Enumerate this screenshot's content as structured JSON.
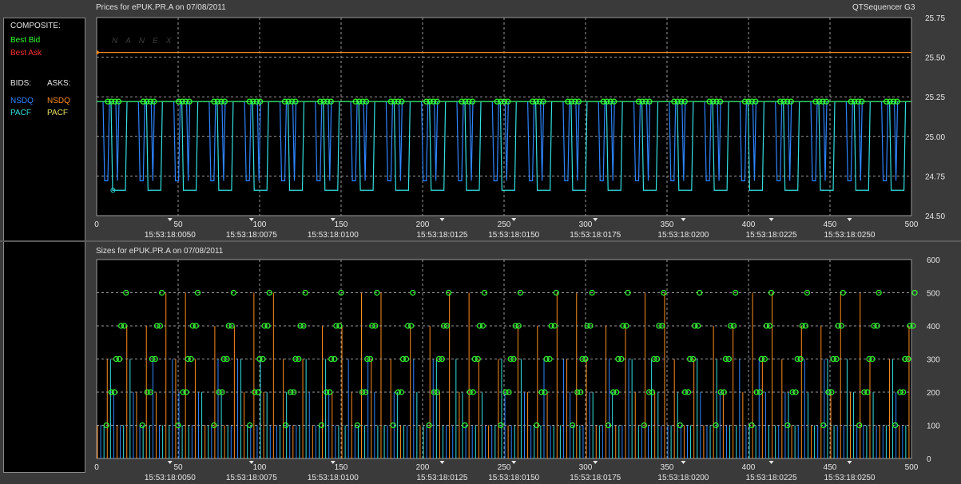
{
  "legend": {
    "composite_label": "COMPOSITE:",
    "best_bid": "Best Bid",
    "best_ask": "Best Ask",
    "bids_label": "BIDS:",
    "asks_label": "ASKS:",
    "bid_nsdq": "NSDQ",
    "bid_pacf": "PACF",
    "ask_nsdq": "NSDQ",
    "ask_pacf": "PACF"
  },
  "colors": {
    "best_bid": "#33ff33",
    "best_ask": "#ff3030",
    "bid_nsdq": "#2e86ff",
    "bid_pacf": "#33e0e0",
    "ask_nsdq": "#ff8c1a",
    "ask_pacf": "#e8e060",
    "bg": "#000000",
    "grid": "#9a9a9a"
  },
  "top_title": "Prices for  ePUK.PR.A  on  07/08/2011",
  "bottom_title": "Sizes for  ePUK.PR.A  on  07/08/2011",
  "app_name": "QTSequencer G3",
  "watermark": "NANEX",
  "chart_data": [
    {
      "type": "line",
      "title": "Prices for  ePUK.PR.A  on  07/08/2011",
      "xlim": [
        0,
        500
      ],
      "ylim": [
        24.5,
        25.75
      ],
      "y_ticks": [
        "25.75",
        "25.50",
        "25.25",
        "25.00",
        "24.75",
        "24.50"
      ],
      "x_ticks": [
        "0",
        "50",
        "100",
        "150",
        "200",
        "250",
        "300",
        "350",
        "400",
        "450",
        "500"
      ],
      "time_labels": [
        {
          "x": 45,
          "label": "15:53:18:0050"
        },
        {
          "x": 95,
          "label": "15:53:18:0075"
        },
        {
          "x": 145,
          "label": "15:53:18:0100"
        },
        {
          "x": 212,
          "label": "15:53:18:0125"
        },
        {
          "x": 256,
          "label": "15:53:18:0150"
        },
        {
          "x": 306,
          "label": "15:53:18:0175"
        },
        {
          "x": 360,
          "label": "15:53:18:0200"
        },
        {
          "x": 414,
          "label": "15:53:18:0225"
        },
        {
          "x": 462,
          "label": "15:53:18:0250"
        }
      ],
      "series": [
        {
          "name": "NSDQ",
          "side": "ask",
          "constant": 25.53
        },
        {
          "name": "NSDQ",
          "side": "bid",
          "high": 25.22,
          "low": 24.72
        },
        {
          "name": "PACF",
          "side": "bid",
          "high": 25.22,
          "low": 24.66
        },
        {
          "name": "Best Bid",
          "side": "composite",
          "value": 25.22
        }
      ],
      "grid": true
    },
    {
      "type": "bar",
      "title": "Sizes for  ePUK.PR.A  on  07/08/2011",
      "xlim": [
        0,
        500
      ],
      "ylim": [
        0,
        600
      ],
      "y_ticks": [
        "600",
        "500",
        "400",
        "300",
        "200",
        "100",
        "0"
      ],
      "x_ticks": [
        "0",
        "50",
        "100",
        "150",
        "200",
        "250",
        "300",
        "350",
        "400",
        "450",
        "500"
      ],
      "time_labels": [
        {
          "x": 45,
          "label": "15:53:18:0050"
        },
        {
          "x": 95,
          "label": "15:53:18:0075"
        },
        {
          "x": 145,
          "label": "15:53:18:0100"
        },
        {
          "x": 212,
          "label": "15:53:18:0125"
        },
        {
          "x": 256,
          "label": "15:53:18:0150"
        },
        {
          "x": 306,
          "label": "15:53:18:0175"
        },
        {
          "x": 360,
          "label": "15:53:18:0200"
        },
        {
          "x": 414,
          "label": "15:53:18:0225"
        },
        {
          "x": 462,
          "label": "15:53:18:0250"
        }
      ],
      "size_levels": [
        100,
        200,
        300,
        400,
        500
      ],
      "grid": true
    }
  ]
}
